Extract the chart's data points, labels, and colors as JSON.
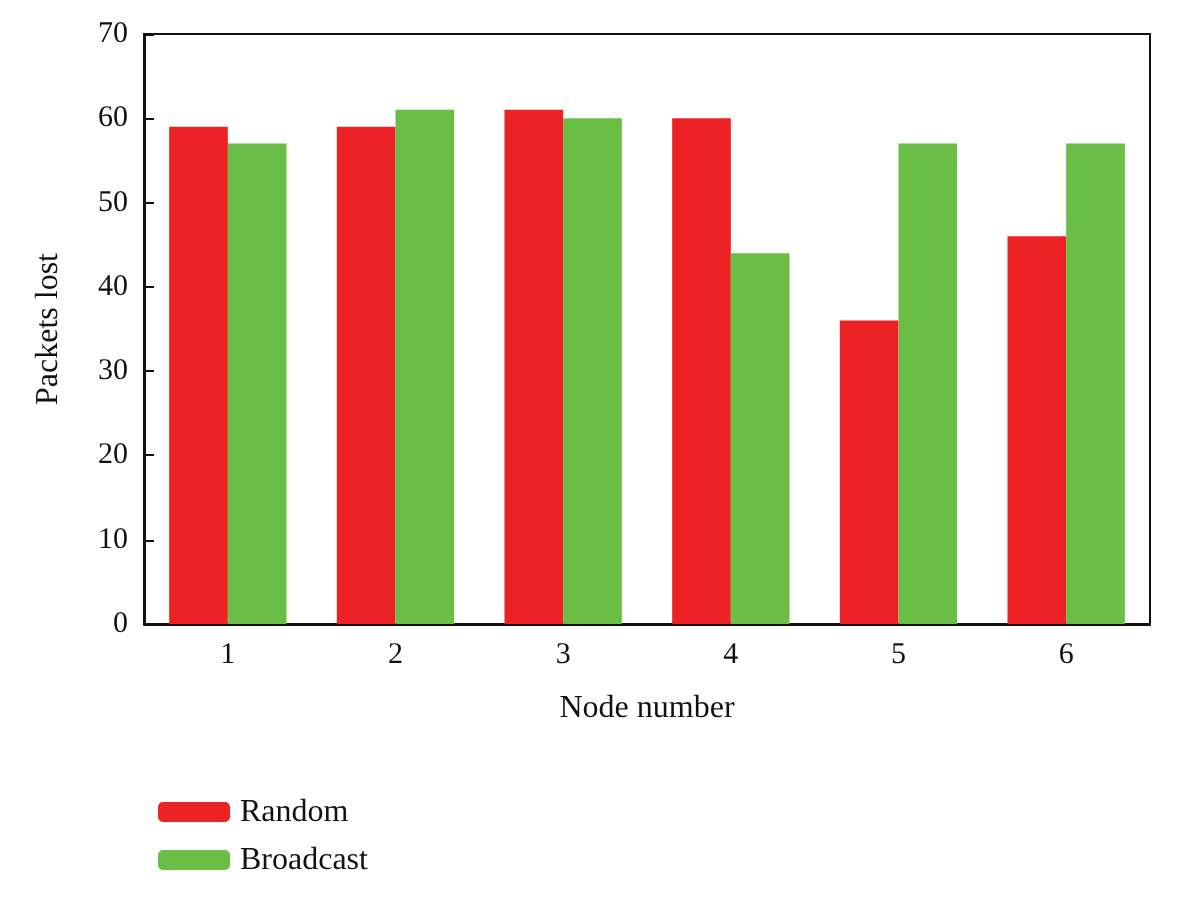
{
  "chart_data": {
    "type": "bar",
    "xlabel": "Node number",
    "ylabel": "Packets lost",
    "categories": [
      "1",
      "2",
      "3",
      "4",
      "5",
      "6"
    ],
    "series": [
      {
        "name": "Random",
        "color": "#ed2224",
        "values": [
          59,
          59,
          61,
          60,
          36,
          46
        ]
      },
      {
        "name": "Broadcast",
        "color": "#6abd45",
        "values": [
          57,
          61,
          60,
          44,
          57,
          57
        ]
      }
    ],
    "ylim": [
      0,
      70
    ],
    "yticks": [
      0,
      10,
      20,
      30,
      40,
      50,
      60,
      70
    ],
    "grid": false,
    "legend": "bottom left"
  }
}
